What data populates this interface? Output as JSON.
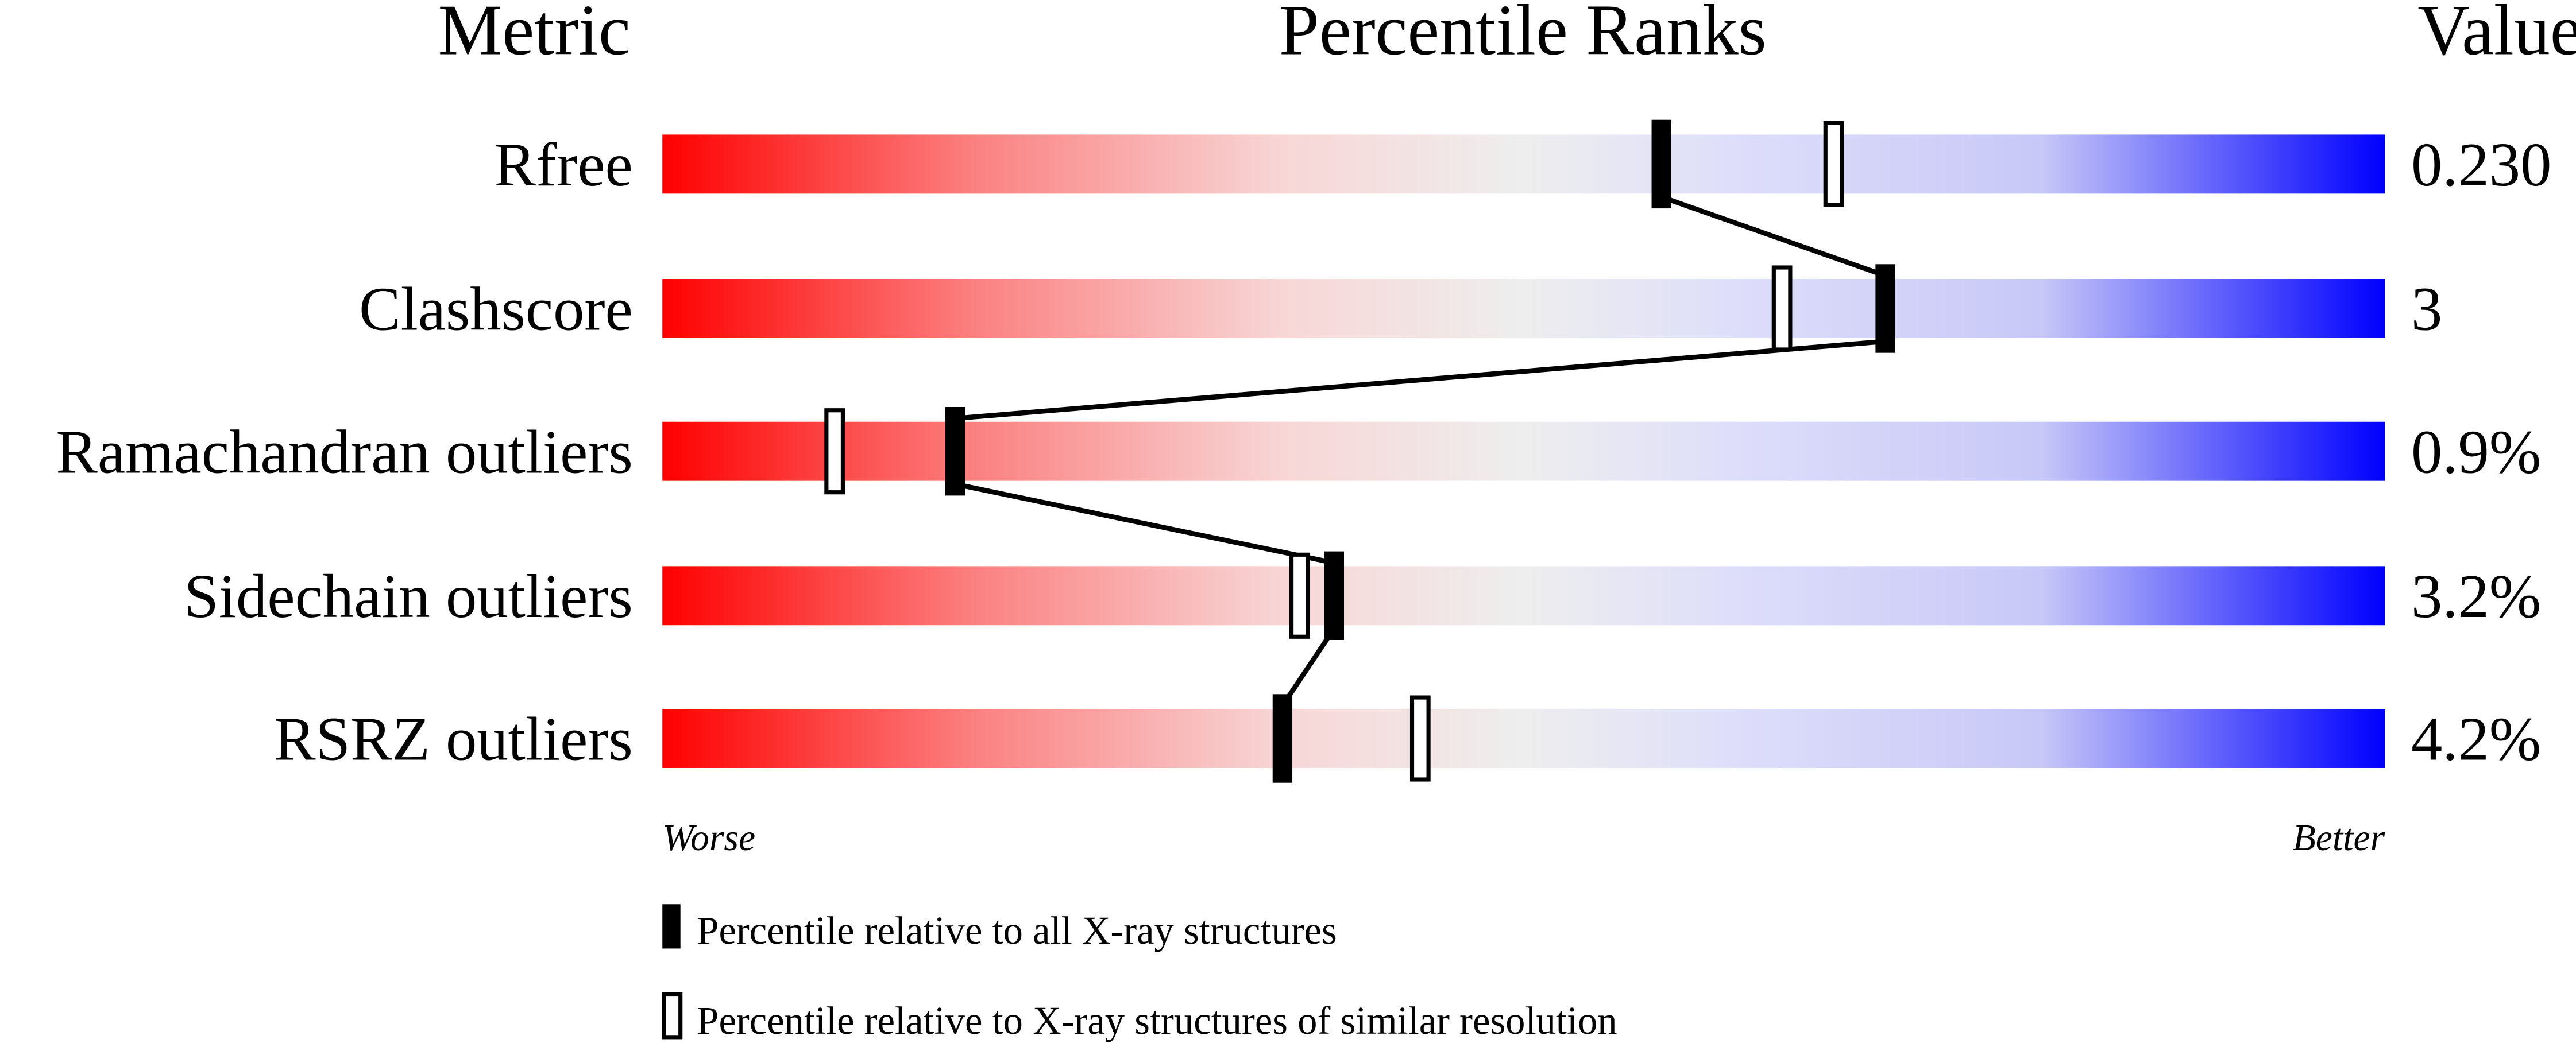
{
  "chart_data": {
    "type": "bar",
    "headers": {
      "metric": "Metric",
      "ranks": "Percentile Ranks",
      "value": "Value"
    },
    "xlim": [
      0,
      100
    ],
    "rows": [
      {
        "metric": "Rfree",
        "value": "0.230",
        "percentile_all": 58,
        "percentile_similar": 68
      },
      {
        "metric": "Clashscore",
        "value": "3",
        "percentile_all": 71,
        "percentile_similar": 65
      },
      {
        "metric": "Ramachandran outliers",
        "value": "0.9%",
        "percentile_all": 17,
        "percentile_similar": 10
      },
      {
        "metric": "Sidechain outliers",
        "value": "3.2%",
        "percentile_all": 39,
        "percentile_similar": 37
      },
      {
        "metric": "RSRZ outliers",
        "value": "4.2%",
        "percentile_all": 36,
        "percentile_similar": 44
      }
    ],
    "axis_left_label": "Worse",
    "axis_right_label": "Better",
    "legend": [
      {
        "marker": "filled",
        "label": "Percentile relative to all X-ray structures"
      },
      {
        "marker": "open",
        "label": "Percentile relative to X-ray structures of similar resolution"
      }
    ],
    "colors": {
      "worse": "#ff0000",
      "middle": "#eeeeee",
      "better": "#0000ff",
      "marker": "#000000"
    }
  }
}
